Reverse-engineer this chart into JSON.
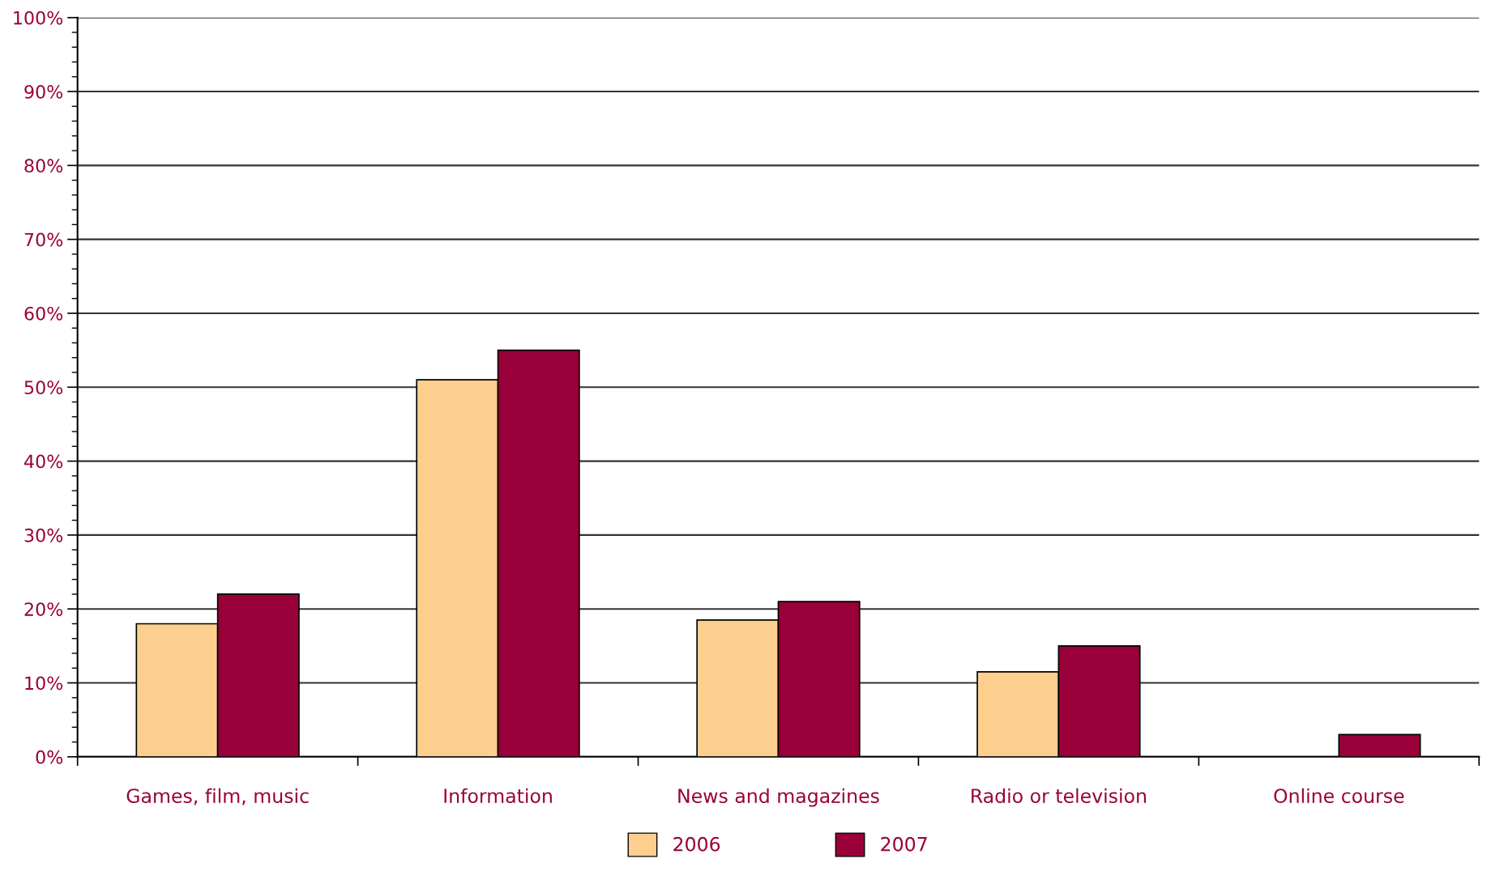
{
  "chart_data": {
    "type": "bar",
    "categories": [
      "Games, film, music",
      "Information",
      "News and magazines",
      "Radio or television",
      "Online course"
    ],
    "series": [
      {
        "name": "2006",
        "color": "#fccf8e",
        "values": [
          18,
          51,
          18.5,
          11.5,
          null
        ]
      },
      {
        "name": "2007",
        "color": "#990039",
        "values": [
          22,
          55,
          21,
          15,
          3
        ]
      }
    ],
    "ylim": [
      0,
      100
    ],
    "yticks": [
      {
        "value": 0,
        "label": "0%"
      },
      {
        "value": 10,
        "label": "10%"
      },
      {
        "value": 20,
        "label": "20%"
      },
      {
        "value": 30,
        "label": "30%"
      },
      {
        "value": 40,
        "label": "40%"
      },
      {
        "value": 50,
        "label": "50%"
      },
      {
        "value": 60,
        "label": "60%"
      },
      {
        "value": 70,
        "label": "70%"
      },
      {
        "value": 80,
        "label": "80%"
      },
      {
        "value": 90,
        "label": "90%"
      },
      {
        "value": 100,
        "label": "100%"
      }
    ],
    "grid": "y",
    "legend": "bottom"
  }
}
